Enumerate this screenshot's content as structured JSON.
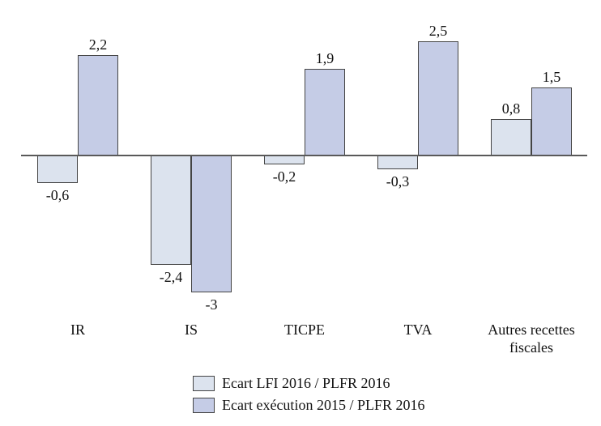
{
  "page": {
    "background": "#ffffff",
    "text_color": "#111111"
  },
  "chart_data": {
    "type": "bar",
    "title": "",
    "xlabel": "",
    "ylabel": "",
    "categories": [
      "IR",
      "IS",
      "TICPE",
      "TVA",
      "Autres recettes fiscales"
    ],
    "series": [
      {
        "name": "Ecart LFI 2016 / PLFR 2016",
        "color": "#dce3ee",
        "values": [
          -0.6,
          -2.4,
          -0.2,
          -0.3,
          0.8
        ],
        "labels": [
          "-0,6",
          "-2,4",
          "-0,2",
          "-0,3",
          "0,8"
        ]
      },
      {
        "name": "Ecart exécution 2015 / PLFR 2016",
        "color": "#c5cce6",
        "values": [
          2.2,
          -3,
          1.9,
          2.5,
          1.5
        ],
        "labels": [
          "2,2",
          "-3",
          "1,9",
          "2,5",
          "1,5"
        ]
      }
    ],
    "ylim": [
      -3,
      2.5
    ],
    "grid": false,
    "y_axis_visible": false,
    "legend_position": "bottom",
    "bar_border_color": "#444444",
    "axis_line_color": "#595959"
  }
}
